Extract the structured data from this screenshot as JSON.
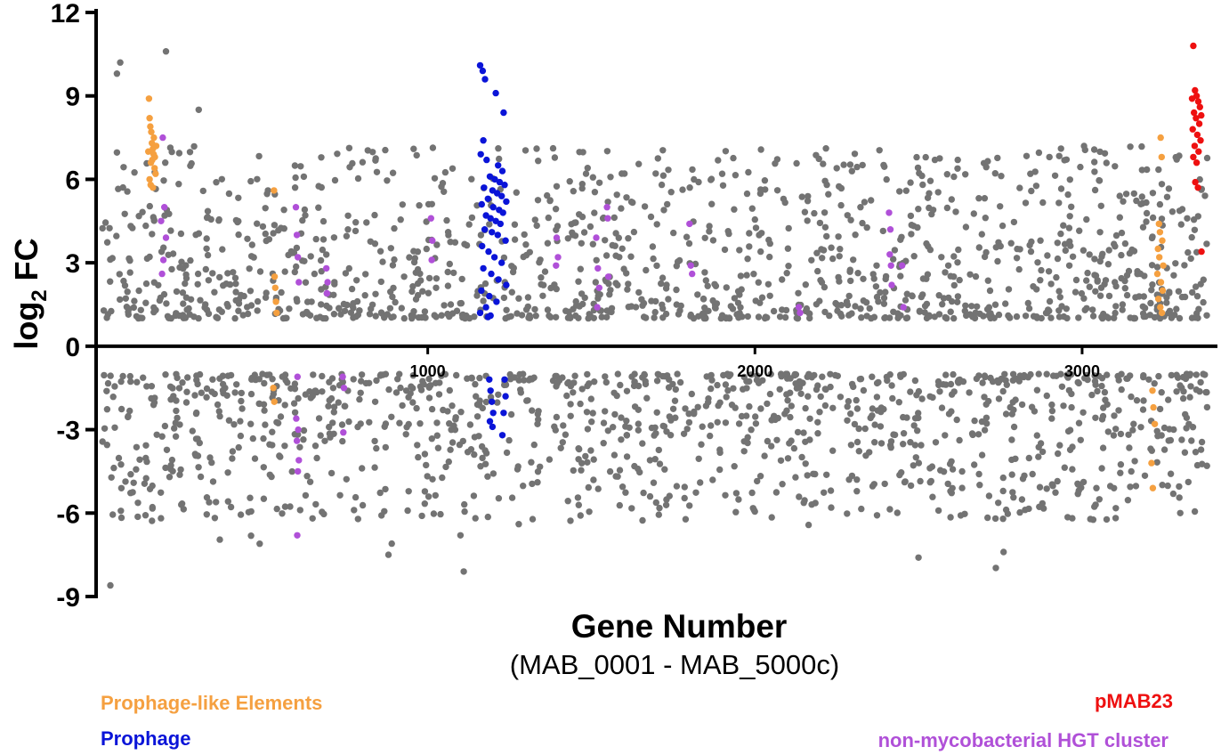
{
  "chart_data": {
    "type": "scatter",
    "xlabel": "Gene Number",
    "xlabel_sub": "(MAB_0001 - MAB_5000c)",
    "ylabel_main": "log",
    "ylabel_subscript": "2",
    "ylabel_suffix": " FC",
    "xlim": [
      0,
      3400
    ],
    "ylim": [
      -9,
      12
    ],
    "x_ticks": [
      1000,
      2000,
      3000
    ],
    "x_tick_labels": [
      "1000",
      "2000",
      "3000"
    ],
    "y_ticks": [
      12,
      9,
      6,
      3,
      0,
      -3,
      -6,
      -9
    ],
    "y_tick_labels": [
      "12",
      "9",
      "6",
      "3",
      "0",
      "-3",
      "-6",
      "-9"
    ],
    "grid": false,
    "legend": [
      {
        "label": "Prophage-like Elements",
        "color": "#f5a040",
        "position": "bottom-left"
      },
      {
        "label": "Prophage",
        "color": "#0a14d8",
        "position": "bottom-left"
      },
      {
        "label": "pMAB23",
        "color": "#ee1010",
        "position": "bottom-right"
      },
      {
        "label": "non-mycobacterial HGT cluster",
        "color": "#b050d8",
        "position": "bottom-right"
      }
    ],
    "series": [
      {
        "key": "prophage_like",
        "color": "#f5a040",
        "points": [
          [
            148,
            8.9
          ],
          [
            150,
            8.2
          ],
          [
            152,
            7.9
          ],
          [
            155,
            7.7
          ],
          [
            157,
            7.3
          ],
          [
            160,
            7.1
          ],
          [
            162,
            6.9
          ],
          [
            158,
            6.7
          ],
          [
            154,
            6.6
          ],
          [
            165,
            6.4
          ],
          [
            168,
            6.2
          ],
          [
            150,
            6.0
          ],
          [
            153,
            5.8
          ],
          [
            160,
            5.7
          ],
          [
            163,
            7.5
          ],
          [
            146,
            7.0
          ],
          [
            170,
            7.2
          ],
          [
            166,
            6.8
          ],
          [
            530,
            5.6
          ],
          [
            532,
            2.5
          ],
          [
            534,
            2.1
          ],
          [
            536,
            1.6
          ],
          [
            538,
            1.2
          ],
          [
            528,
            -1.5
          ],
          [
            531,
            -2.0
          ],
          [
            3240,
            7.5
          ],
          [
            3243,
            6.8
          ],
          [
            3235,
            4.4
          ],
          [
            3238,
            4.1
          ],
          [
            3245,
            3.8
          ],
          [
            3232,
            3.5
          ],
          [
            3236,
            3.2
          ],
          [
            3248,
            2.9
          ],
          [
            3230,
            2.6
          ],
          [
            3241,
            2.3
          ],
          [
            3246,
            2.0
          ],
          [
            3233,
            1.7
          ],
          [
            3239,
            1.4
          ],
          [
            3244,
            1.2
          ],
          [
            3215,
            -1.6
          ],
          [
            3218,
            -2.2
          ],
          [
            3222,
            -2.8
          ],
          [
            3212,
            -4.2
          ],
          [
            3216,
            -5.1
          ]
        ]
      },
      {
        "key": "prophage",
        "color": "#0a14d8",
        "points": [
          [
            1160,
            10.1
          ],
          [
            1168,
            9.9
          ],
          [
            1175,
            9.6
          ],
          [
            1208,
            9.1
          ],
          [
            1232,
            8.4
          ],
          [
            1170,
            7.4
          ],
          [
            1162,
            6.9
          ],
          [
            1180,
            6.7
          ],
          [
            1215,
            6.5
          ],
          [
            1228,
            6.3
          ],
          [
            1190,
            6.1
          ],
          [
            1205,
            6.0
          ],
          [
            1220,
            5.9
          ],
          [
            1235,
            5.8
          ],
          [
            1172,
            5.7
          ],
          [
            1198,
            5.6
          ],
          [
            1212,
            5.5
          ],
          [
            1226,
            5.4
          ],
          [
            1184,
            5.3
          ],
          [
            1240,
            5.2
          ],
          [
            1165,
            5.1
          ],
          [
            1200,
            5.0
          ],
          [
            1218,
            4.9
          ],
          [
            1230,
            4.8
          ],
          [
            1178,
            4.7
          ],
          [
            1192,
            4.6
          ],
          [
            1208,
            4.5
          ],
          [
            1222,
            4.4
          ],
          [
            1174,
            4.2
          ],
          [
            1196,
            4.1
          ],
          [
            1214,
            4.0
          ],
          [
            1238,
            3.8
          ],
          [
            1166,
            3.6
          ],
          [
            1186,
            3.4
          ],
          [
            1204,
            3.2
          ],
          [
            1226,
            3.0
          ],
          [
            1170,
            2.8
          ],
          [
            1194,
            2.6
          ],
          [
            1216,
            2.4
          ],
          [
            1240,
            2.2
          ],
          [
            1164,
            2.0
          ],
          [
            1188,
            1.8
          ],
          [
            1210,
            1.6
          ],
          [
            1178,
            1.4
          ],
          [
            1160,
            1.2
          ],
          [
            1184,
            1.05
          ],
          [
            1192,
            1.1
          ],
          [
            1188,
            -1.2
          ],
          [
            1192,
            -1.6
          ],
          [
            1196,
            -2.0
          ],
          [
            1200,
            -2.4
          ],
          [
            1190,
            -2.7
          ],
          [
            1198,
            -2.9
          ],
          [
            1235,
            -1.2
          ],
          [
            1238,
            -1.8
          ],
          [
            1232,
            -2.4
          ],
          [
            1228,
            -3.2
          ]
        ]
      },
      {
        "key": "pmab23",
        "color": "#ee1010",
        "points": [
          [
            3340,
            10.8
          ],
          [
            3345,
            9.2
          ],
          [
            3350,
            9.0
          ],
          [
            3355,
            8.8
          ],
          [
            3360,
            8.6
          ],
          [
            3342,
            8.4
          ],
          [
            3348,
            8.2
          ],
          [
            3358,
            8.0
          ],
          [
            3338,
            7.8
          ],
          [
            3352,
            7.6
          ],
          [
            3362,
            7.4
          ],
          [
            3344,
            7.2
          ],
          [
            3356,
            7.0
          ],
          [
            3340,
            6.8
          ],
          [
            3350,
            6.6
          ],
          [
            3346,
            5.9
          ],
          [
            3354,
            5.7
          ],
          [
            3365,
            3.4
          ],
          [
            3336,
            8.9
          ],
          [
            3364,
            8.3
          ]
        ]
      },
      {
        "key": "hgt_cluster",
        "color": "#b050d8",
        "points": [
          [
            190,
            7.5
          ],
          [
            195,
            5.0
          ],
          [
            185,
            4.5
          ],
          [
            200,
            3.9
          ],
          [
            192,
            3.1
          ],
          [
            188,
            2.6
          ],
          [
            597,
            5.0
          ],
          [
            600,
            4.0
          ],
          [
            603,
            3.2
          ],
          [
            606,
            2.3
          ],
          [
            602,
            -1.1
          ],
          [
            598,
            -2.6
          ],
          [
            604,
            -3.0
          ],
          [
            600,
            -3.4
          ],
          [
            606,
            -4.1
          ],
          [
            603,
            -4.5
          ],
          [
            601,
            -6.8
          ],
          [
            690,
            2.8
          ],
          [
            694,
            2.3
          ],
          [
            692,
            1.9
          ],
          [
            740,
            -1.1
          ],
          [
            744,
            -1.5
          ],
          [
            742,
            -3.1
          ],
          [
            1010,
            4.6
          ],
          [
            1014,
            3.8
          ],
          [
            1012,
            3.1
          ],
          [
            1394,
            3.9
          ],
          [
            1398,
            3.2
          ],
          [
            1392,
            2.9
          ],
          [
            1515,
            3.9
          ],
          [
            1520,
            2.8
          ],
          [
            1524,
            2.1
          ],
          [
            1518,
            1.4
          ],
          [
            1548,
            5.0
          ],
          [
            1550,
            4.6
          ],
          [
            1552,
            2.5
          ],
          [
            1800,
            4.4
          ],
          [
            1804,
            2.9
          ],
          [
            1808,
            2.6
          ],
          [
            2134,
            1.4
          ],
          [
            2138,
            1.2
          ],
          [
            2410,
            4.8
          ],
          [
            2414,
            4.2
          ],
          [
            2412,
            3.3
          ],
          [
            2416,
            2.9
          ],
          [
            2418,
            2.2
          ],
          [
            2450,
            2.9
          ],
          [
            2454,
            1.4
          ]
        ]
      }
    ],
    "background_series": {
      "key": "other_genes",
      "color": "#737373",
      "count_up": 1300,
      "count_down": 1150,
      "y_up_range": [
        1,
        10.6
      ],
      "y_down_range": [
        -8.6,
        -1
      ],
      "notable_points": [
        [
          60,
          10.2
        ],
        [
          50,
          9.8
        ],
        [
          200,
          10.6
        ],
        [
          300,
          8.5
        ],
        [
          30,
          -8.6
        ],
        [
          880,
          -7.5
        ],
        [
          890,
          -7.1
        ],
        [
          1110,
          -8.1
        ],
        [
          1100,
          -6.8
        ],
        [
          2500,
          -7.6
        ],
        [
          2760,
          -7.4
        ],
        [
          2900,
          6.8
        ],
        [
          2620,
          6.7
        ],
        [
          3300,
          -6.0
        ],
        [
          1900,
          6.2
        ],
        [
          2250,
          6.4
        ]
      ]
    }
  }
}
